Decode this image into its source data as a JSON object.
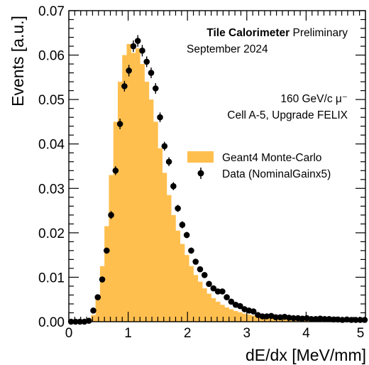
{
  "chart_data": {
    "type": "bar",
    "xlabel": "dE/dx [MeV/mm]",
    "ylabel": "Events [a.u.]",
    "xlim": [
      0,
      5
    ],
    "ylim": [
      0,
      0.07
    ],
    "x_ticks": [
      "0",
      "1",
      "2",
      "3",
      "4",
      "5"
    ],
    "y_ticks": [
      "0.00",
      "0.01",
      "0.02",
      "0.03",
      "0.04",
      "0.05",
      "0.06",
      "0.07"
    ],
    "annotations": {
      "experiment_bold": "Tile Calorimeter",
      "experiment_status": "Preliminary",
      "date": "September 2024",
      "beam": "160 GeV/c μ⁻",
      "cell": "Cell A-5, Upgrade FELIX"
    },
    "legend_position": "right-middle",
    "bin_width": 0.075,
    "series": [
      {
        "name": "Geant4 Monte-Carlo",
        "kind": "histogram",
        "color": "#FFBF4F",
        "bin_centers": [
          0.0375,
          0.1125,
          0.1875,
          0.2625,
          0.3375,
          0.4125,
          0.4875,
          0.5625,
          0.6375,
          0.7125,
          0.7875,
          0.8625,
          0.9375,
          1.0125,
          1.0875,
          1.1625,
          1.2375,
          1.3125,
          1.3875,
          1.4625,
          1.5375,
          1.6125,
          1.6875,
          1.7625,
          1.8375,
          1.9125,
          1.9875,
          2.0625,
          2.1375,
          2.2125,
          2.2875,
          2.3625,
          2.4375,
          2.5125,
          2.5875,
          2.6625,
          2.7375,
          2.8125,
          2.8875,
          2.9625,
          3.0375,
          3.1125,
          3.1875,
          3.2625,
          3.3375,
          3.4125,
          3.4875,
          3.5625,
          3.6375,
          3.7125,
          3.7875,
          3.8625,
          3.9375,
          4.0125,
          4.0875,
          4.1625,
          4.2375,
          4.3125,
          4.3875,
          4.4625,
          4.5375,
          4.6125,
          4.6875,
          4.7625,
          4.8375,
          4.9125,
          4.9875
        ],
        "values": [
          0,
          0,
          0,
          0,
          0.0005,
          0.0015,
          0.005,
          0.0125,
          0.0215,
          0.033,
          0.045,
          0.054,
          0.06,
          0.0625,
          0.0605,
          0.0615,
          0.058,
          0.054,
          0.05,
          0.045,
          0.039,
          0.0335,
          0.0285,
          0.024,
          0.0205,
          0.0175,
          0.015,
          0.0125,
          0.0105,
          0.009,
          0.0075,
          0.0063,
          0.0053,
          0.0045,
          0.0038,
          0.0032,
          0.0028,
          0.0024,
          0.0021,
          0.0018,
          0.0016,
          0.0014,
          0.0012,
          0.0011,
          0.001,
          0.0009,
          0.0008,
          0.0007,
          0.0007,
          0.0006,
          0.0006,
          0.0005,
          0.0005,
          0.0005,
          0.0004,
          0.0004,
          0.0004,
          0.0004,
          0.0003,
          0.0003,
          0.0003,
          0.0003,
          0.0003,
          0.0003,
          0.0003,
          0.0002,
          0.0002
        ]
      },
      {
        "name": "Data (NominalGainx5)",
        "kind": "points_with_errors",
        "color": "#000000",
        "x": [
          0.0375,
          0.1125,
          0.1875,
          0.2625,
          0.3375,
          0.4125,
          0.4875,
          0.5625,
          0.6375,
          0.7125,
          0.7875,
          0.8625,
          0.9375,
          1.0125,
          1.0875,
          1.1625,
          1.2375,
          1.3125,
          1.3875,
          1.4625,
          1.5375,
          1.6125,
          1.6875,
          1.7625,
          1.8375,
          1.9125,
          1.9875,
          2.0625,
          2.1375,
          2.2125,
          2.2875,
          2.3625,
          2.4375,
          2.5125,
          2.5875,
          2.6625,
          2.7375,
          2.8125,
          2.8875,
          2.9625,
          3.0375,
          3.1125,
          3.1875,
          3.2625,
          3.3375,
          3.4125,
          3.4875,
          3.5625,
          3.6375,
          3.7125,
          3.7875,
          3.8625,
          3.9375,
          4.0125,
          4.0875,
          4.1625,
          4.2375,
          4.3125,
          4.3875,
          4.4625,
          4.5375,
          4.6125,
          4.6875,
          4.7625,
          4.8375,
          4.9125,
          4.9875
        ],
        "y": [
          0,
          0,
          0,
          0,
          0.0002,
          0.0025,
          0.0055,
          0.0095,
          0.016,
          0.024,
          0.034,
          0.0445,
          0.053,
          0.0565,
          0.062,
          0.0632,
          0.061,
          0.0585,
          0.056,
          0.0525,
          0.046,
          0.0395,
          0.036,
          0.0305,
          0.0255,
          0.0218,
          0.0195,
          0.016,
          0.0135,
          0.0118,
          0.0105,
          0.0085,
          0.0075,
          0.0068,
          0.0068,
          0.0055,
          0.0045,
          0.0038,
          0.0035,
          0.0028,
          0.0025,
          0.0023,
          0.0015,
          0.0012,
          0.0012,
          0.0013,
          0.001,
          0.001,
          0.0011,
          0.0009,
          0.0008,
          0.0008,
          0.0007,
          0.0008,
          0.0006,
          0.0006,
          0.0007,
          0.0006,
          0.0006,
          0.0005,
          0.0005,
          0.0004,
          0.0005,
          0.0004,
          0.0004,
          0.0004,
          0.0004
        ],
        "errors": [
          0.0003,
          0.0003,
          0.0003,
          0.0003,
          0.0003,
          0.0004,
          0.0005,
          0.0006,
          0.0007,
          0.0009,
          0.001,
          0.0012,
          0.0012,
          0.0013,
          0.0013,
          0.0013,
          0.0013,
          0.0012,
          0.0012,
          0.0012,
          0.0011,
          0.001,
          0.001,
          0.0009,
          0.0008,
          0.0008,
          0.0007,
          0.0007,
          0.0006,
          0.0006,
          0.0005,
          0.0005,
          0.0005,
          0.0004,
          0.0004,
          0.0004,
          0.0004,
          0.0003,
          0.0003,
          0.0003,
          0.0003,
          0.0003,
          0.0003,
          0.0003,
          0.0003,
          0.0003,
          0.0003,
          0.0003,
          0.0003,
          0.0003,
          0.0003,
          0.0003,
          0.0003,
          0.0003,
          0.0003,
          0.0003,
          0.0003,
          0.0003,
          0.0003,
          0.0003,
          0.0003,
          0.0003,
          0.0003,
          0.0003,
          0.0003,
          0.0003,
          0.0003
        ]
      }
    ]
  }
}
